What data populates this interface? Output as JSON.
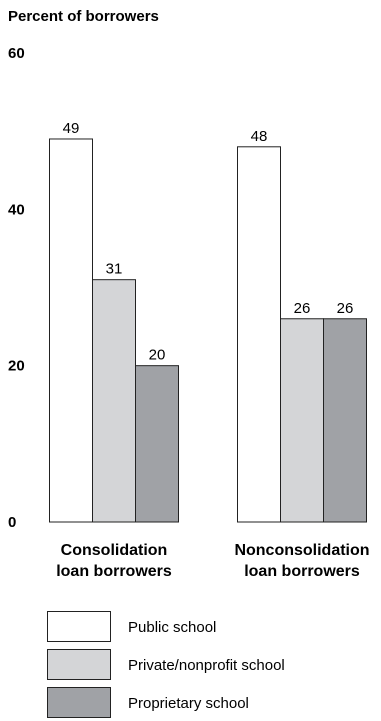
{
  "chart_data": {
    "type": "bar",
    "ylabel": "Percent of borrowers",
    "ylim": [
      0,
      60
    ],
    "yticks": [
      "0",
      "20",
      "40",
      "60"
    ],
    "categories": [
      [
        "Consolidation",
        "loan borrowers"
      ],
      [
        "Nonconsolidation",
        "loan borrowers"
      ]
    ],
    "series": [
      {
        "name": "Public school",
        "values": [
          49,
          48
        ],
        "color": "#ffffff"
      },
      {
        "name": "Private/nonprofit school",
        "values": [
          31,
          26
        ],
        "color": "#d4d5d7"
      },
      {
        "name": "Proprietary school",
        "values": [
          20,
          26
        ],
        "color": "#a0a2a6"
      }
    ],
    "grid": false,
    "legend": "bottom"
  }
}
